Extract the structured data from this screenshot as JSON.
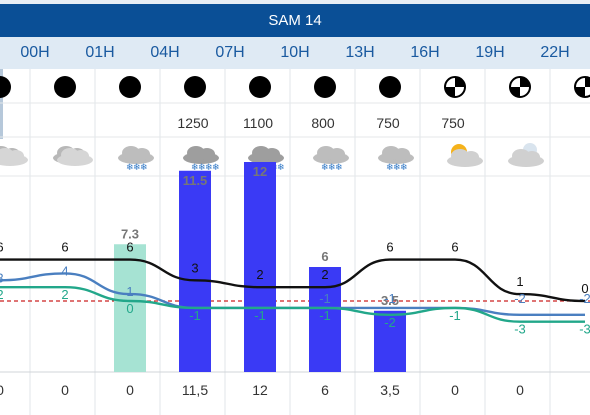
{
  "day": "SAM 14",
  "hours": [
    "00H",
    "01H",
    "04H",
    "07H",
    "10H",
    "13H",
    "16H",
    "19H",
    "22H"
  ],
  "visibility_icons": [
    "full-dot",
    "full-dot",
    "full-dot",
    "full-dot",
    "full-dot",
    "full-dot",
    "full-dot",
    "partial-dot",
    "partial-dot",
    "partial-dot"
  ],
  "altitudes": [
    {
      "col": 2,
      "text": "1250"
    },
    {
      "col": 3,
      "text": "1100"
    },
    {
      "col": 4,
      "text": "800"
    },
    {
      "col": 5,
      "text": "750"
    },
    {
      "col": 6,
      "text": "750"
    }
  ],
  "weather_icons": [
    "cloudy",
    "cloudy",
    "snow",
    "heavy-snow",
    "heavy-snow",
    "snow",
    "snow",
    "sun-cloud",
    "moon-cloud"
  ],
  "chart_data": {
    "type": "bar",
    "categories": [
      "",
      "00H",
      "01H",
      "04H",
      "07H",
      "10H",
      "13H",
      "16H",
      "19H",
      "22H"
    ],
    "bars": [
      {
        "index": 2,
        "value": 7.3,
        "label": "7.3",
        "color": "#a6e3d3"
      },
      {
        "index": 3,
        "value": 11.5,
        "label": "11.5",
        "color": "#3a3af5"
      },
      {
        "index": 4,
        "value": 12,
        "label": "12",
        "color": "#3a3af5"
      },
      {
        "index": 5,
        "value": 6,
        "label": "6",
        "color": "#3a3af5"
      },
      {
        "index": 6,
        "value": 3.5,
        "label": "3.5",
        "color": "#3a3af5"
      }
    ],
    "series": [
      {
        "key": "temp",
        "color": "#111111",
        "points": [
          6,
          6,
          6,
          3,
          2,
          2,
          6,
          6,
          1,
          0
        ],
        "labels": [
          "6",
          "6",
          "6",
          "3",
          "2",
          "2",
          "6",
          "6",
          "1",
          "0"
        ]
      },
      {
        "key": "felt",
        "color": "#4a7fc0",
        "points": [
          3,
          4,
          1,
          -1,
          -1,
          -1,
          -1,
          -1,
          -2,
          -2
        ],
        "labels": [
          "3",
          "4",
          "1",
          "",
          "",
          "",
          "",
          "",
          "",
          ""
        ]
      },
      {
        "key": "dew",
        "color": "#22a78a",
        "points": [
          2,
          2,
          0,
          -1,
          -1,
          -1,
          -2,
          -1,
          -3,
          -3
        ],
        "labels": [
          "2",
          "2",
          "0",
          "-1",
          "-1",
          "-1",
          "-2",
          "-1",
          "-3",
          "-3"
        ]
      }
    ],
    "extra_labels": [
      {
        "index": 5,
        "text": "-1",
        "color": "#4a7fc0"
      },
      {
        "index": 6,
        "text": "-1",
        "color": "#4a7fc0"
      },
      {
        "index": 8,
        "text": "-2",
        "color": "#4a7fc0"
      },
      {
        "index": 9,
        "text": "-2",
        "color": "#4a7fc0"
      }
    ],
    "zero_line_color": "#cc2222",
    "precip_values": [
      "0",
      "0",
      "0",
      "11,5",
      "12",
      "6",
      "3,5",
      "0",
      "0"
    ]
  }
}
